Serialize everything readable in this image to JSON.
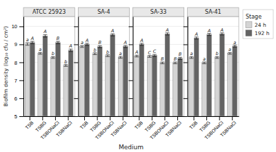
{
  "chart_data": [
    {
      "type": "bar",
      "title": "ATCC 25923",
      "categories": [
        "TSB",
        "TSBG",
        "TSBONaCl",
        "TSBNaCl"
      ],
      "series": [
        {
          "name": "24 h",
          "color": "#d4d4d4",
          "values": [
            9.02,
            8.5,
            8.27,
            7.83
          ],
          "errors": [
            0.07,
            0.05,
            0.05,
            0.05
          ],
          "letters": [
            "a",
            "a",
            "b",
            "b"
          ]
        },
        {
          "name": "192 h",
          "color": "#636363",
          "values": [
            9.1,
            9.47,
            9.1,
            8.67
          ],
          "errors": [
            0.07,
            0.07,
            0.07,
            0.07
          ],
          "letters": [
            "A",
            "A",
            "B",
            "A"
          ]
        }
      ],
      "ylim": [
        5,
        10.55
      ],
      "yticks": [
        5,
        6,
        7,
        8,
        9,
        10
      ],
      "grid": true,
      "y_label": "Biofilm density (log₁₀ cfu / cm²)",
      "x_label": "Medium",
      "legend_title": "Stage",
      "legend": "right"
    },
    {
      "type": "bar",
      "title": "SA-4",
      "categories": [
        "TSB",
        "TSBG",
        "TSBONaCl",
        "TSBNaCl"
      ],
      "series": [
        {
          "color": "#d4d4d4",
          "values": [
            8.88,
            8.48,
            8.37,
            8.28
          ],
          "errors": [
            0.05,
            0.05,
            0.05,
            0.05
          ],
          "letters": [
            "a",
            "b",
            "b",
            "a"
          ]
        },
        {
          "color": "#636363",
          "values": [
            9.0,
            8.87,
            9.53,
            8.88
          ],
          "errors": [
            0.06,
            0.06,
            0.06,
            0.06
          ],
          "letters": [
            "A",
            "B",
            "A",
            "A"
          ]
        }
      ],
      "ylim": [
        5,
        10.55
      ],
      "yticks": [
        5,
        6,
        7,
        8,
        9,
        10
      ],
      "grid": true,
      "tick_labels": "x"
    },
    {
      "type": "bar",
      "title": "SA-33",
      "categories": [
        "TSB",
        "TSBG",
        "TSBONaCl",
        "TSBNaCl"
      ],
      "series": [
        {
          "color": "#d4d4d4",
          "values": [
            8.35,
            8.33,
            7.97,
            7.97
          ],
          "errors": [
            0.05,
            0.05,
            0.05,
            0.05
          ],
          "letters": [
            "A",
            "C",
            "B",
            "B"
          ]
        },
        {
          "color": "#636363",
          "values": [
            9.0,
            8.38,
            9.58,
            8.22
          ],
          "errors": [
            0.06,
            0.06,
            0.06,
            0.06
          ],
          "letters": [
            "A",
            "C",
            "A",
            "B"
          ]
        }
      ],
      "ylim": [
        5,
        10.55
      ],
      "yticks": [
        5,
        6,
        7,
        8,
        9,
        10
      ],
      "grid": true,
      "tick_labels": "x"
    },
    {
      "type": "bar",
      "title": "SA-41",
      "categories": [
        "TSB",
        "TSBG",
        "TSBONaCl",
        "TSBNaCl"
      ],
      "series": [
        {
          "color": "#d4d4d4",
          "values": [
            8.27,
            7.97,
            8.27,
            8.5
          ],
          "errors": [
            0.05,
            0.05,
            0.05,
            0.05
          ],
          "letters": [
            "a",
            "a",
            "b",
            "a"
          ]
        },
        {
          "color": "#636363",
          "values": [
            9.35,
            9.55,
            9.58,
            8.9
          ],
          "errors": [
            0.06,
            0.06,
            0.06,
            0.06
          ],
          "letters": [
            "A",
            "A",
            "A",
            "a"
          ]
        }
      ],
      "ylim": [
        5,
        10.55
      ],
      "yticks": [
        5,
        6,
        7,
        8,
        9,
        10
      ],
      "grid": true,
      "tick_labels": "x"
    }
  ]
}
